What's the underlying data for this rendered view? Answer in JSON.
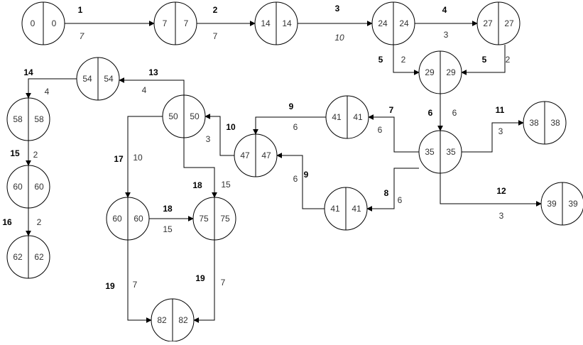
{
  "nodes": [
    {
      "id": "n0",
      "left": "0",
      "right": "0"
    },
    {
      "id": "n7",
      "left": "7",
      "right": "7"
    },
    {
      "id": "n14",
      "left": "14",
      "right": "14"
    },
    {
      "id": "n24",
      "left": "24",
      "right": "24"
    },
    {
      "id": "n27",
      "left": "27",
      "right": "27"
    },
    {
      "id": "n29",
      "left": "29",
      "right": "29"
    },
    {
      "id": "n35",
      "left": "35",
      "right": "35"
    },
    {
      "id": "n38",
      "left": "38",
      "right": "38"
    },
    {
      "id": "n39",
      "left": "39",
      "right": "39"
    },
    {
      "id": "n41a",
      "left": "41",
      "right": "41"
    },
    {
      "id": "n41b",
      "left": "41",
      "right": "41"
    },
    {
      "id": "n47",
      "left": "47",
      "right": "47"
    },
    {
      "id": "n50",
      "left": "50",
      "right": "50"
    },
    {
      "id": "n54",
      "left": "54",
      "right": "54"
    },
    {
      "id": "n58",
      "left": "58",
      "right": "58"
    },
    {
      "id": "n60a",
      "left": "60",
      "right": "60"
    },
    {
      "id": "n62",
      "left": "62",
      "right": "62"
    },
    {
      "id": "n60b",
      "left": "60",
      "right": "60"
    },
    {
      "id": "n75",
      "left": "75",
      "right": "75"
    },
    {
      "id": "n82",
      "left": "82",
      "right": "82"
    }
  ],
  "edges": [
    {
      "id": "e1",
      "activity": "1",
      "duration": "7",
      "italic": true
    },
    {
      "id": "e2",
      "activity": "2",
      "duration": "7"
    },
    {
      "id": "e3",
      "activity": "3",
      "duration": "10",
      "italic": true
    },
    {
      "id": "e4",
      "activity": "4",
      "duration": "3"
    },
    {
      "id": "e5a",
      "activity": "5",
      "duration": "2"
    },
    {
      "id": "e5b",
      "activity": "5",
      "duration": "2"
    },
    {
      "id": "e6",
      "activity": "6",
      "duration": "6"
    },
    {
      "id": "e7",
      "activity": "7",
      "duration": "6"
    },
    {
      "id": "e8",
      "activity": "8",
      "duration": "6"
    },
    {
      "id": "e9a",
      "activity": "9",
      "duration": "6"
    },
    {
      "id": "e9b",
      "activity": "9",
      "duration": "6"
    },
    {
      "id": "e10",
      "activity": "10",
      "duration": "3"
    },
    {
      "id": "e11",
      "activity": "11",
      "duration": "3"
    },
    {
      "id": "e12",
      "activity": "12",
      "duration": "3"
    },
    {
      "id": "e13",
      "activity": "13",
      "duration": "4"
    },
    {
      "id": "e14",
      "activity": "14",
      "duration": "4"
    },
    {
      "id": "e15",
      "activity": "15",
      "duration": "2"
    },
    {
      "id": "e16",
      "activity": "16",
      "duration": "2"
    },
    {
      "id": "e17",
      "activity": "17",
      "duration": "10"
    },
    {
      "id": "e18a",
      "activity": "18",
      "duration": "15"
    },
    {
      "id": "e18b",
      "activity": "18",
      "duration": "15"
    },
    {
      "id": "e19a",
      "activity": "19",
      "duration": "7"
    },
    {
      "id": "e19b",
      "activity": "19",
      "duration": "7"
    }
  ],
  "colors": {
    "stroke": "#000000",
    "fill": "#ffffff",
    "text": "#333333"
  }
}
